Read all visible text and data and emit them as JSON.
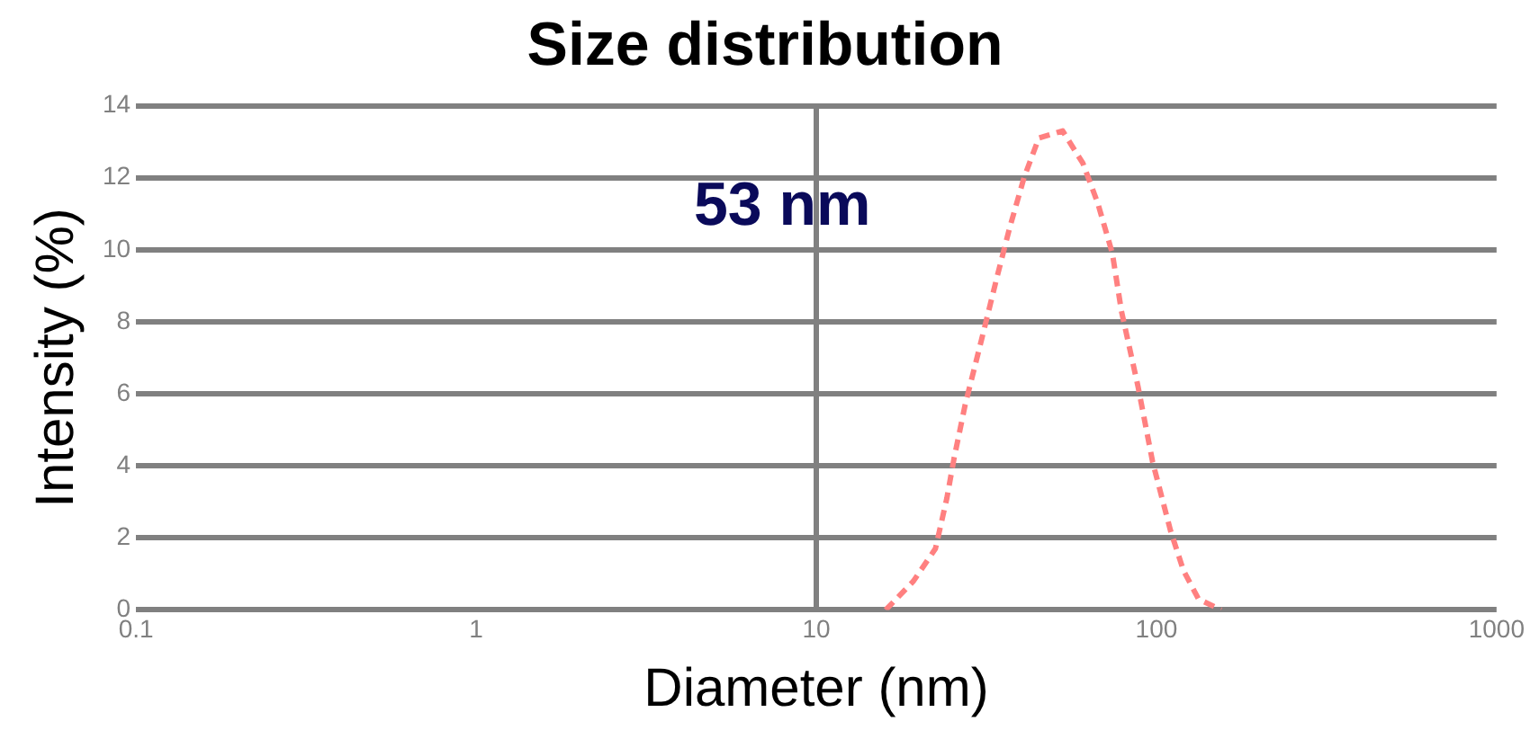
{
  "chart_data": {
    "type": "line",
    "title": "Size distribution",
    "xlabel": "Diameter (nm)",
    "ylabel": "Intensity (%)",
    "x": [
      16,
      19.3,
      22.4,
      24.2,
      25.4,
      27.4,
      30.6,
      33.9,
      37,
      40.8,
      45.1,
      53,
      60.8,
      67.2,
      74.2,
      78.9,
      88.3,
      97.5,
      110,
      120,
      133,
      155
    ],
    "series": [
      {
        "color": "#ff8080",
        "values": [
          0,
          0.8,
          1.7,
          3.1,
          4.2,
          5.7,
          7.5,
          9.2,
          10.6,
          12,
          13.1,
          13.3,
          12.4,
          11.3,
          9.9,
          8.3,
          6.2,
          4.1,
          2.2,
          1.1,
          0.3,
          0
        ]
      }
    ],
    "log": "x",
    "xlim": [
      0.1,
      1000
    ],
    "xticks": [
      0.1,
      1,
      10,
      100,
      1000
    ],
    "ylim": [
      0,
      14
    ],
    "yticks": [
      0,
      2,
      4,
      6,
      8,
      10,
      12,
      14
    ],
    "grid": "y",
    "ref_lines": [
      {
        "axis": "x",
        "value": 10
      }
    ],
    "line_style": "dashed",
    "marker": "none",
    "legend": false,
    "annotations": [
      "53 nm"
    ]
  }
}
